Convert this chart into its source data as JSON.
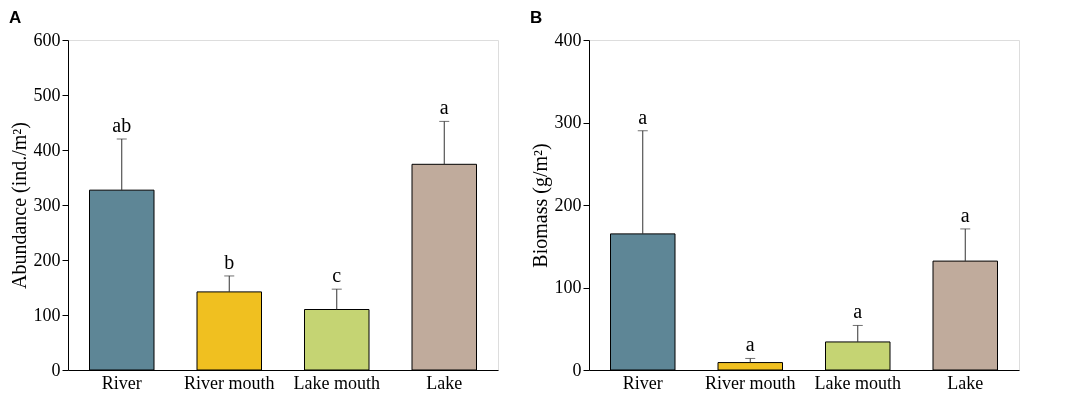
{
  "chart_data": [
    {
      "type": "bar",
      "title": "A",
      "ylabel": "Abundance (ind./m²)",
      "categories": [
        "River",
        "River mouth",
        "Lake mouth",
        "Lake"
      ],
      "values": [
        327,
        142,
        110,
        374
      ],
      "colors": [
        "#5e8696",
        "#f0c020",
        "#c5d473",
        "#c0ab9c"
      ],
      "errors": [
        [
          327,
          420
        ],
        [
          142,
          171
        ],
        [
          110,
          147
        ],
        [
          374,
          452
        ]
      ],
      "ylim": [
        0,
        600
      ],
      "yticks": [
        0,
        100,
        200,
        300,
        400,
        500,
        600
      ],
      "grid": false,
      "annotations": [
        {
          "text": "ab",
          "x": "River",
          "y": 420
        },
        {
          "text": "b",
          "x": "River mouth",
          "y": 171
        },
        {
          "text": "c",
          "x": "Lake mouth",
          "y": 147
        },
        {
          "text": "a",
          "x": "Lake",
          "y": 452
        }
      ]
    },
    {
      "type": "bar",
      "title": "B",
      "ylabel": "Biomass (g/m²)",
      "categories": [
        "River",
        "River mouth",
        "Lake mouth",
        "Lake"
      ],
      "values": [
        165,
        9,
        34,
        132
      ],
      "colors": [
        "#5e8696",
        "#f0c020",
        "#c5d473",
        "#c0ab9c"
      ],
      "errors": [
        [
          165,
          290
        ],
        [
          9,
          14
        ],
        [
          34,
          54
        ],
        [
          132,
          171
        ]
      ],
      "ylim": [
        0,
        400
      ],
      "yticks": [
        0,
        100,
        200,
        300,
        400
      ],
      "grid": false,
      "annotations": [
        {
          "text": "a",
          "x": "River",
          "y": 290
        },
        {
          "text": "a",
          "x": "River mouth",
          "y": 14
        },
        {
          "text": "a",
          "x": "Lake mouth",
          "y": 54
        },
        {
          "text": "a",
          "x": "Lake",
          "y": 171
        }
      ]
    }
  ]
}
